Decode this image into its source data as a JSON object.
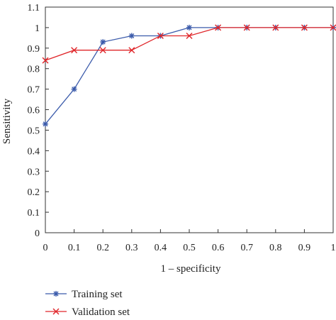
{
  "chart_data": {
    "type": "line",
    "xlabel": "1 – specificity",
    "ylabel": "Sensitivity",
    "xlim": [
      0,
      1
    ],
    "ylim": [
      0,
      1.1
    ],
    "x_ticks": [
      "0",
      "0.1",
      "0.2",
      "0.3",
      "0.4",
      "0.5",
      "0.6",
      "0.7",
      "0.8",
      "0.9",
      "1"
    ],
    "y_ticks": [
      "0",
      "0.1",
      "0.2",
      "0.3",
      "0.4",
      "0.5",
      "0.6",
      "0.7",
      "0.8",
      "0.9",
      "1",
      "1.1"
    ],
    "grid": false,
    "legend_position": "bottom-left",
    "series": [
      {
        "name": "Training set",
        "color": "#3b5bab",
        "marker": "asterisk",
        "x": [
          0,
          0.1,
          0.2,
          0.3,
          0.4,
          0.5,
          0.6,
          0.7,
          0.8,
          0.9,
          1.0
        ],
        "y": [
          0.53,
          0.7,
          0.93,
          0.96,
          0.96,
          1.0,
          1.0,
          1.0,
          1.0,
          1.0,
          1.0
        ]
      },
      {
        "name": "Validation set",
        "color": "#e0262a",
        "marker": "cross",
        "x": [
          0,
          0.1,
          0.2,
          0.3,
          0.4,
          0.5,
          0.6,
          0.7,
          0.8,
          0.9,
          1.0
        ],
        "y": [
          0.84,
          0.89,
          0.89,
          0.89,
          0.96,
          0.96,
          1.0,
          1.0,
          1.0,
          1.0,
          1.0
        ]
      }
    ]
  }
}
